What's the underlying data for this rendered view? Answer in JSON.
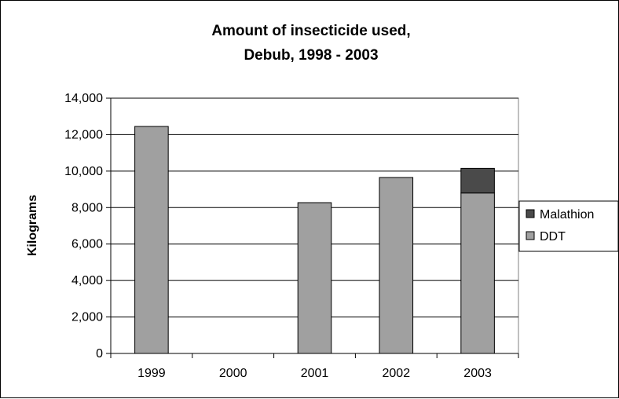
{
  "chart_data": {
    "type": "bar",
    "stacked": true,
    "title": [
      "Amount of insecticide used,",
      "Debub, 1998 - 2003"
    ],
    "xlabel": "",
    "ylabel": "Kilograms",
    "categories": [
      "1999",
      "2000",
      "2001",
      "2002",
      "2003"
    ],
    "series": [
      {
        "name": "DDT",
        "values": [
          12450,
          0,
          8270,
          9650,
          8800
        ],
        "color": "#a0a0a0"
      },
      {
        "name": "Malathion",
        "values": [
          0,
          0,
          0,
          0,
          1350
        ],
        "color": "#4a4a4a"
      }
    ],
    "ylim": [
      0,
      14000
    ],
    "yticks": [
      0,
      2000,
      4000,
      6000,
      8000,
      10000,
      12000,
      14000
    ],
    "ytick_labels": [
      "0",
      "2,000",
      "4,000",
      "6,000",
      "8,000",
      "10,000",
      "12,000",
      "14,000"
    ],
    "grid": true,
    "legend": {
      "placement": "right",
      "entries": [
        "Malathion",
        "DDT"
      ]
    }
  }
}
